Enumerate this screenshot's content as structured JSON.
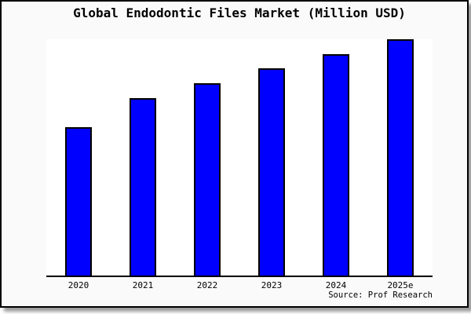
{
  "chart_data": {
    "type": "bar",
    "title": "Global Endodontic Files Market (Million USD)",
    "categories": [
      "2020",
      "2021",
      "2022",
      "2023",
      "2024",
      "2025e"
    ],
    "values": [
      62.8,
      75.1,
      81.4,
      87.7,
      93.7,
      100
    ],
    "value_scale": "relative bar height, percent of tallest (2025e) bar; chart displays no y-axis tick labels",
    "xlabel": "",
    "ylabel": "",
    "ylim": [
      0,
      100
    ],
    "grid": false,
    "legend": false,
    "y_axis_visible": false,
    "source_note": "Source: Prof Research"
  },
  "colors": {
    "bar_fill": "#0000ff",
    "bar_border": "#000000",
    "axis_line": "#000000",
    "plot_background": "#ffffff",
    "figure_background": "#fafafa",
    "frame_border": "#000000",
    "text": "#000000"
  }
}
